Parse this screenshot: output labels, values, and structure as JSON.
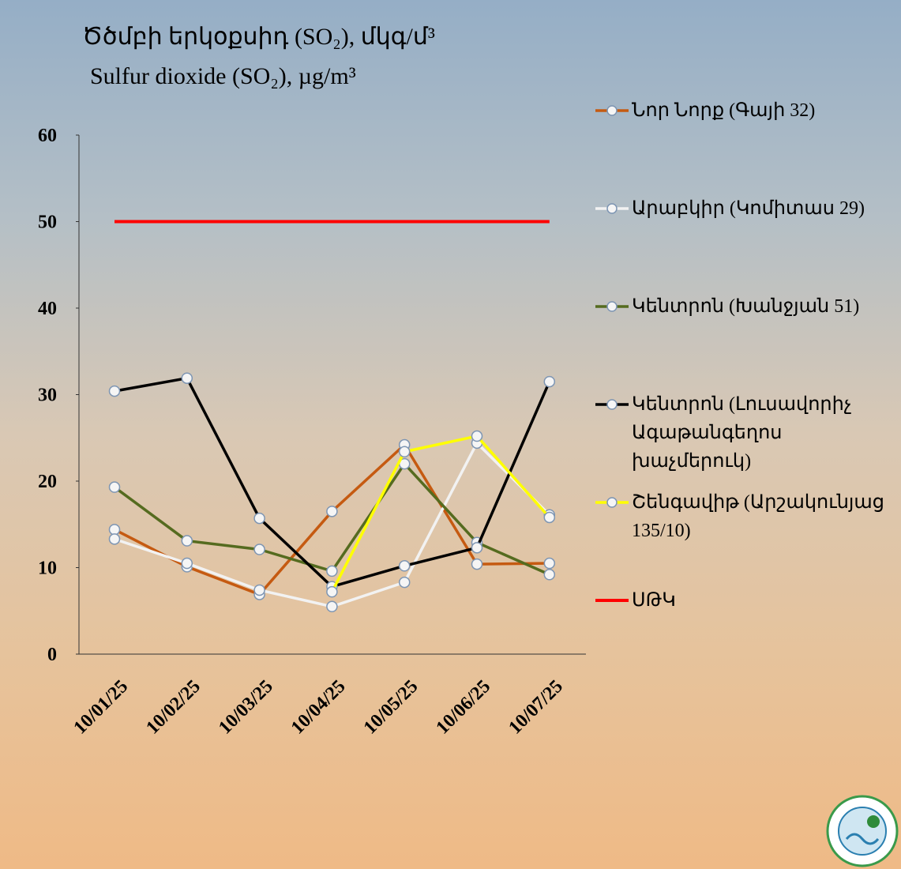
{
  "chart_data": {
    "type": "line",
    "title": "Ծծմբի երկօքսիդ (SO₂), մկգ/մ³",
    "subtitle": "Sulfur dioxide (SO₂), µg/m³",
    "categories": [
      "10/01/25",
      "10/02/25",
      "10/03/25",
      "10/04/25",
      "10/05/25",
      "10/06/25",
      "10/07/25"
    ],
    "series": [
      {
        "name": "Նոր Նորք (Գայի 32)",
        "color": "#c55a11",
        "values": [
          14.4,
          10.1,
          6.9,
          16.5,
          24.2,
          10.4,
          10.5
        ]
      },
      {
        "name": "Արաբկիր (Կոմիտաս 29)",
        "color": "#f2f2f2",
        "values": [
          13.3,
          10.5,
          7.4,
          5.5,
          8.3,
          24.4,
          16.1
        ]
      },
      {
        "name": "Կենտրոն (Խանջյան 51)",
        "color": "#556b1f",
        "values": [
          19.3,
          13.1,
          12.1,
          9.6,
          22.0,
          12.9,
          9.2
        ]
      },
      {
        "name": "Կենտրոն (Լուսավորիչ Ագաթանգեղոս խաչմերուկ)",
        "color": "#000000",
        "values": [
          30.4,
          31.9,
          15.7,
          7.8,
          10.2,
          12.3,
          31.5
        ]
      },
      {
        "name": "Շենգավիթ (Արշակունյաց 135/10)",
        "color": "#ffff00",
        "values": [
          null,
          null,
          null,
          7.2,
          23.4,
          25.2,
          15.8
        ]
      },
      {
        "name": "ՍԹԿ",
        "color": "#ff0000",
        "values": [
          50,
          50,
          50,
          50,
          50,
          50,
          50
        ],
        "markers": false
      }
    ],
    "ylim": [
      0,
      60
    ],
    "yticks": [
      0,
      10,
      20,
      30,
      40,
      50,
      60
    ],
    "grid": false
  }
}
